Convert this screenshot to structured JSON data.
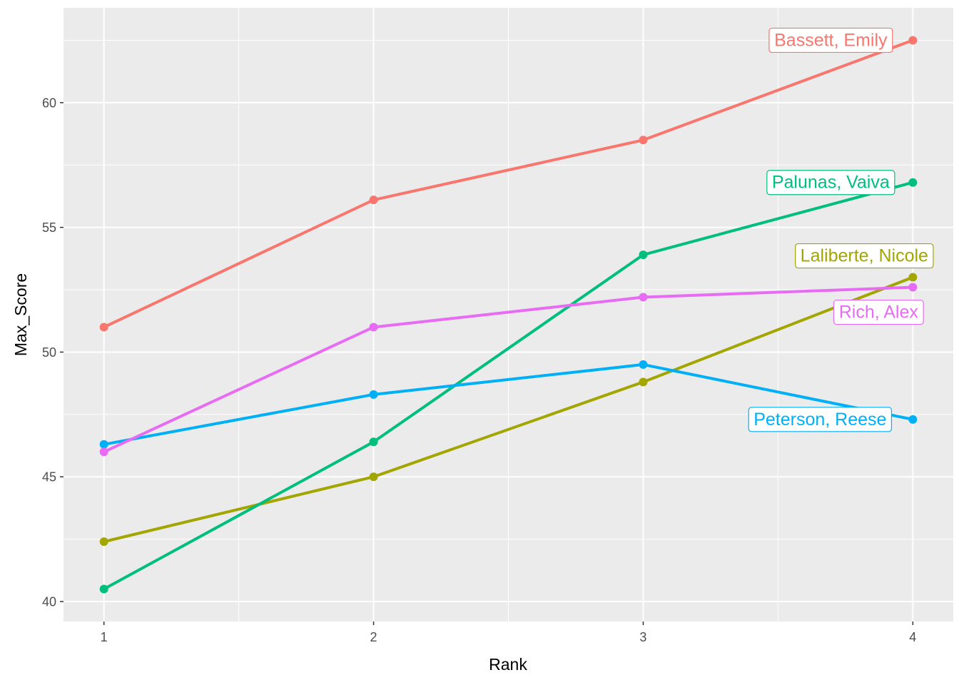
{
  "chart_data": {
    "type": "line",
    "title": "",
    "xlabel": "Rank",
    "ylabel": "Max_Score",
    "x": [
      1,
      2,
      3,
      4
    ],
    "x_ticks": [
      "1",
      "2",
      "3",
      "4"
    ],
    "xlim": [
      0.85,
      4.15
    ],
    "y_ticks": [
      "40",
      "45",
      "50",
      "55",
      "60"
    ],
    "y_tick_values": [
      40,
      45,
      50,
      55,
      60
    ],
    "ylim": [
      39.2,
      63.8
    ],
    "grid": true,
    "legend": "direct labels at right end of each line",
    "series": [
      {
        "name": "Bassett, Emily",
        "color": "#F8766D",
        "values": [
          51.0,
          56.1,
          58.5,
          62.5
        ]
      },
      {
        "name": "Laliberte, Nicole",
        "color": "#A3A500",
        "values": [
          42.4,
          45.0,
          48.8,
          53.0
        ]
      },
      {
        "name": "Palunas, Vaiva",
        "color": "#00BF7D",
        "values": [
          40.5,
          46.4,
          53.9,
          56.8
        ]
      },
      {
        "name": "Peterson, Reese",
        "color": "#00B0F6",
        "values": [
          46.3,
          48.3,
          49.5,
          47.3
        ]
      },
      {
        "name": "Rich, Alex",
        "color": "#E76BF3",
        "values": [
          46.0,
          51.0,
          52.2,
          52.6
        ]
      }
    ]
  }
}
